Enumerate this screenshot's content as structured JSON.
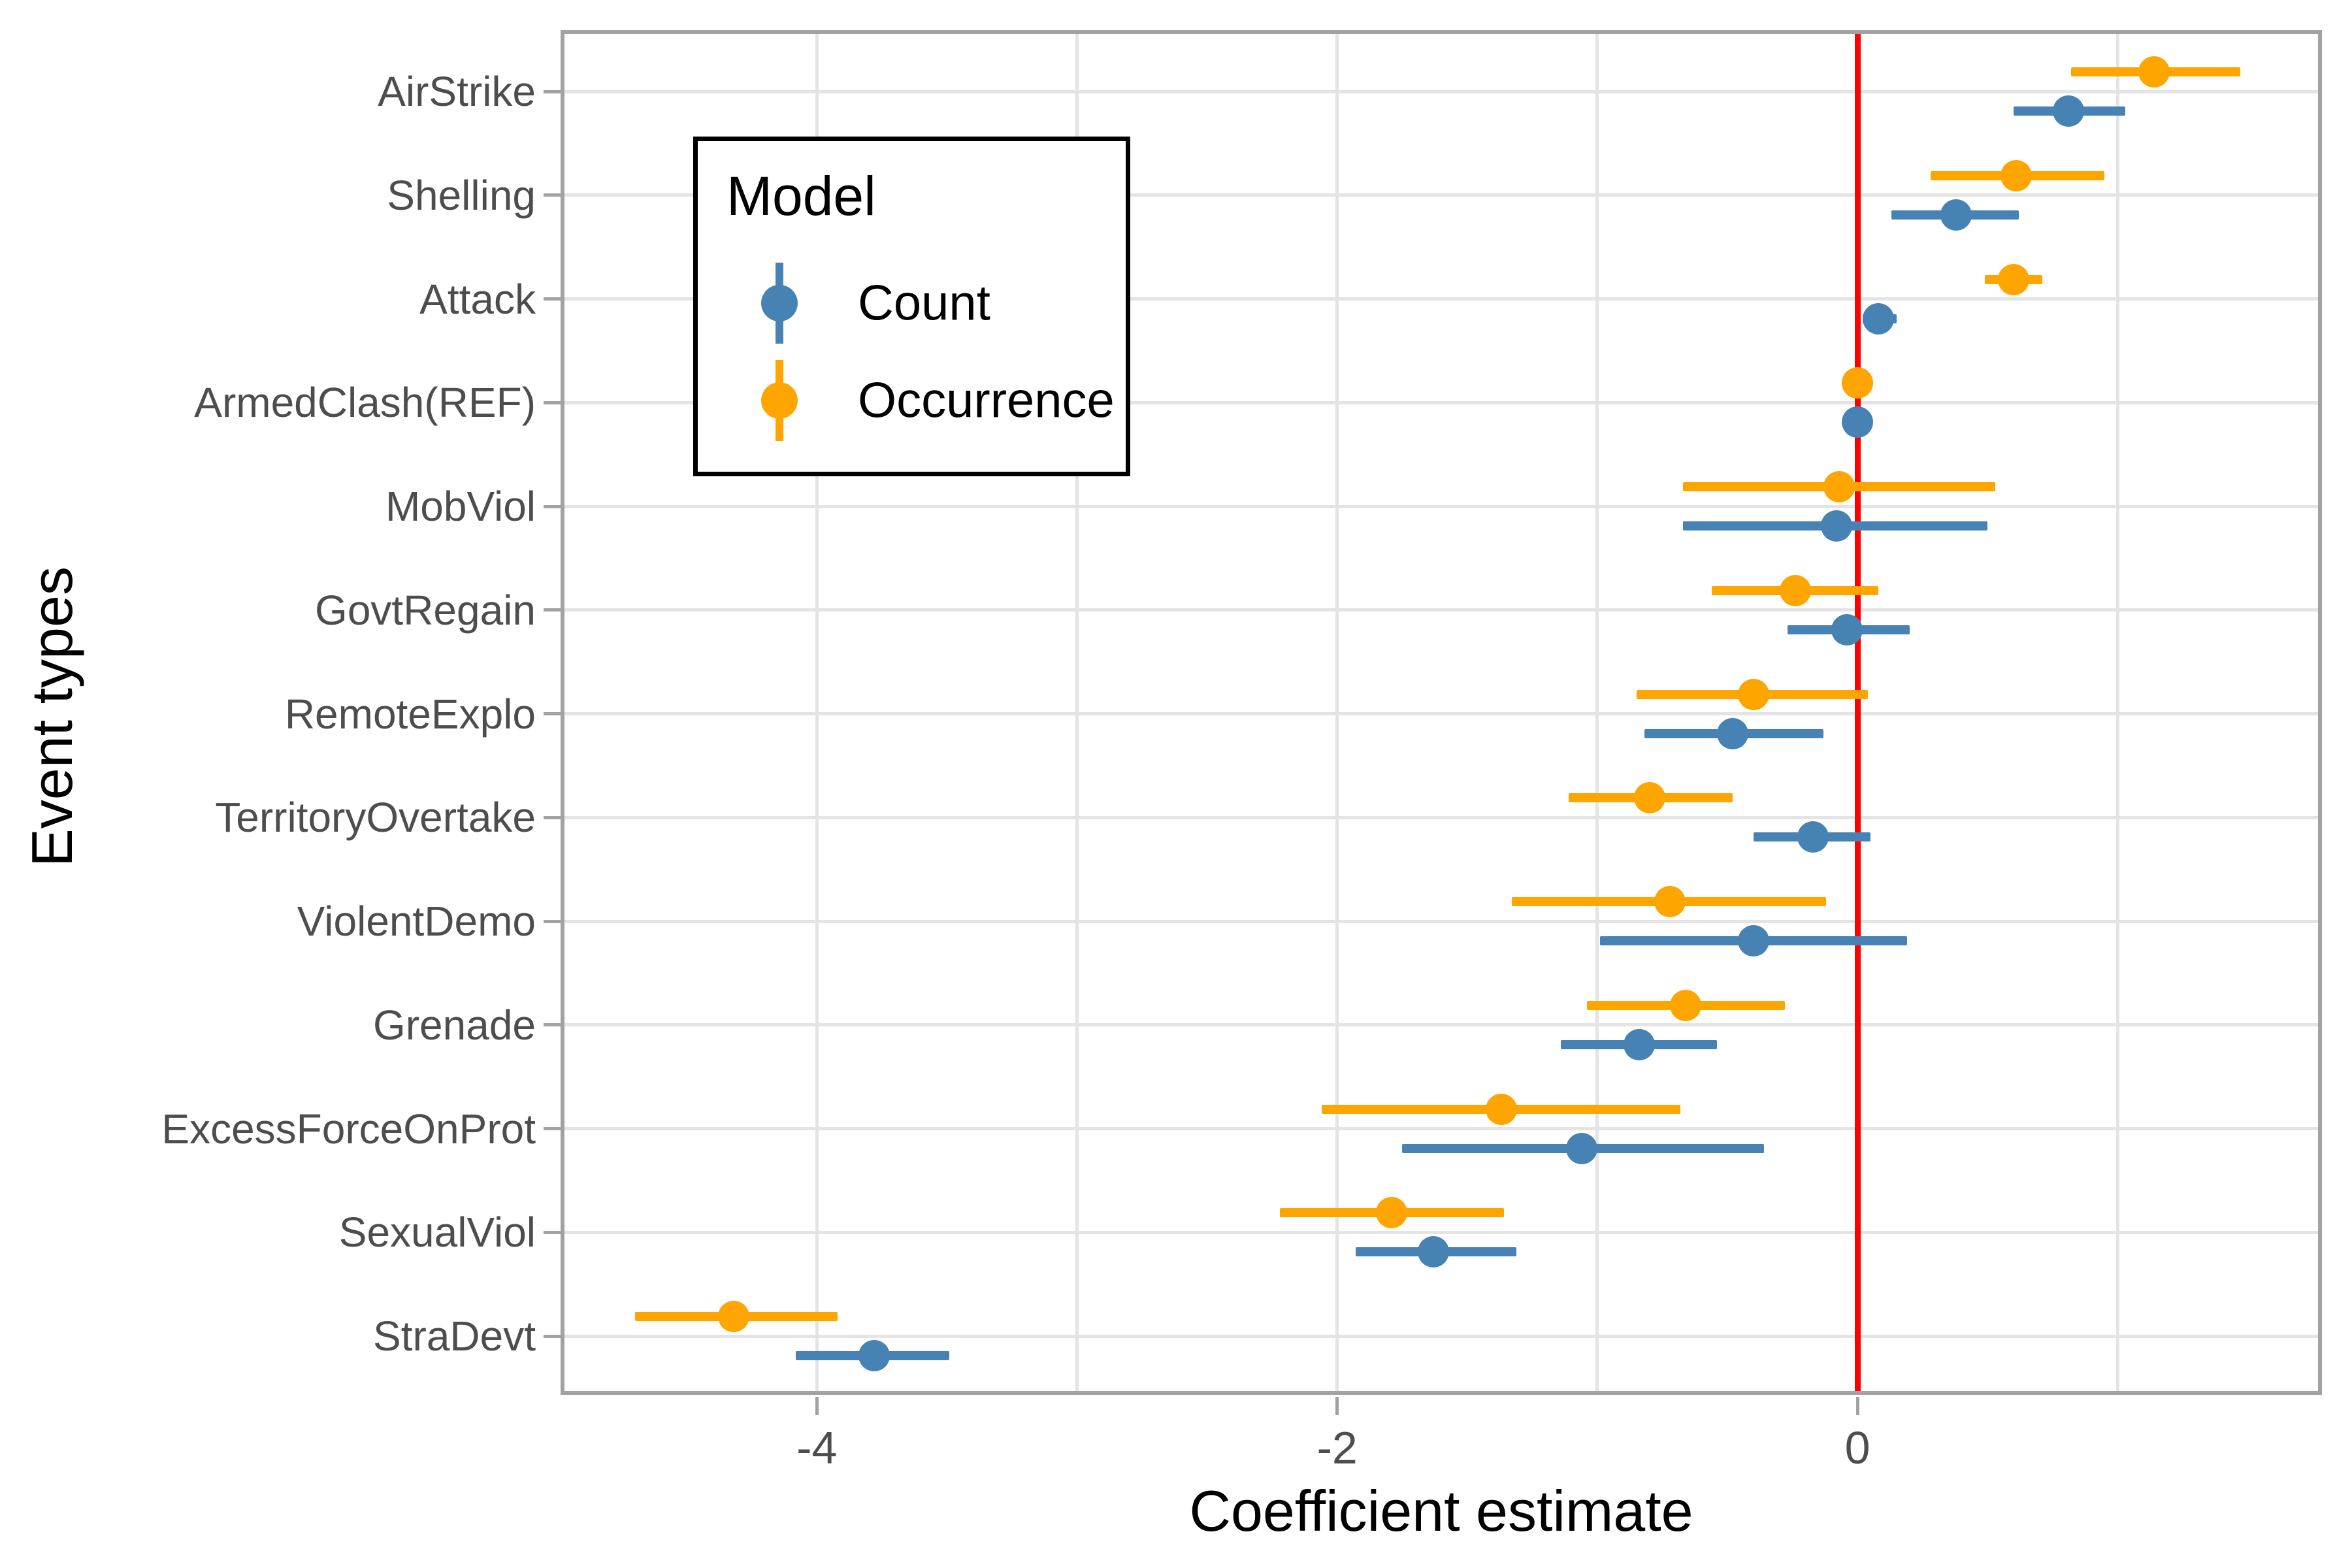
{
  "figure": {
    "x_axis_title": "Coefficient estimate",
    "y_axis_title": "Event types",
    "x_tick_labels": [
      "-4",
      "-2",
      "0"
    ]
  },
  "legend": {
    "title": "Model",
    "items": [
      {
        "label": "Count",
        "color": "#4682B4"
      },
      {
        "label": "Occurrence",
        "color": "#FFA500"
      }
    ]
  },
  "colors": {
    "count_blue": "#4682B4",
    "occurrence_orange": "#FFA500",
    "zero_line_red": "#FF0000",
    "gridline": "#e4e4e4",
    "axis_text": "#4d4d4d"
  },
  "chart_data": {
    "type": "pointrange",
    "orientation": "horizontal",
    "title": "",
    "xlabel": "Coefficient estimate",
    "ylabel": "Event types",
    "categories": [
      "AirStrike",
      "Shelling",
      "Attack",
      "ArmedClash(REF)",
      "MobViol",
      "GovtRegain",
      "RemoteExplo",
      "TerritoryOvertake",
      "ViolentDemo",
      "Grenade",
      "ExcessForceOnProt",
      "SexualViol",
      "StraDevt"
    ],
    "series": [
      {
        "name": "Count",
        "color": "#4682B4",
        "values": [
          0.81,
          0.38,
          0.08,
          0.0,
          -0.08,
          -0.04,
          -0.48,
          -0.17,
          -0.4,
          -0.84,
          -1.06,
          -1.63,
          -3.78
        ],
        "lo": [
          0.6,
          0.13,
          0.02,
          0.0,
          -0.67,
          -0.27,
          -0.82,
          -0.4,
          -0.99,
          -1.14,
          -1.75,
          -1.93,
          -4.08
        ],
        "hi": [
          1.03,
          0.62,
          0.15,
          0.0,
          0.5,
          0.2,
          -0.13,
          0.05,
          0.19,
          -0.54,
          -0.36,
          -1.31,
          -3.49
        ]
      },
      {
        "name": "Occurrence",
        "color": "#FFA500",
        "values": [
          1.14,
          0.61,
          0.6,
          0.0,
          -0.07,
          -0.24,
          -0.4,
          -0.8,
          -0.72,
          -0.66,
          -1.37,
          -1.79,
          -4.32
        ],
        "lo": [
          0.82,
          0.28,
          0.49,
          0.0,
          -0.67,
          -0.56,
          -0.85,
          -1.11,
          -1.33,
          -1.04,
          -2.06,
          -2.22,
          -4.7
        ],
        "hi": [
          1.47,
          0.95,
          0.71,
          0.0,
          0.53,
          0.08,
          0.04,
          -0.48,
          -0.12,
          -0.28,
          -0.68,
          -1.36,
          -3.92
        ]
      }
    ],
    "x_ticks": [
      -4,
      -2,
      0
    ],
    "gridlines_x": [
      -4,
      -3,
      -2,
      -1,
      0,
      1
    ],
    "xlim": [
      -4.97,
      1.77
    ],
    "refline_x": 0,
    "refline_color": "#FF0000",
    "legend_position": "inside-top-left",
    "grid": true
  }
}
